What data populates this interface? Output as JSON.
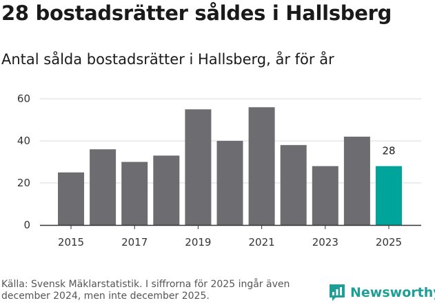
{
  "title": "28 bostadsrätter såldes i Hallsberg",
  "subtitle": "Antal sålda bostadsrätter i Hallsberg, år för år",
  "source": "Källa: Svensk Mäklarstatistik. I siffrorna för 2025 ingår även december 2024, men inte december 2025.",
  "brand": {
    "name": "Newsworthy",
    "icon": "newsworthy-logo-icon",
    "color": "#1e9e96"
  },
  "colors": {
    "bar": "#6d6c70",
    "highlight": "#00a49a",
    "grid": "#d9d9d9",
    "axis": "#333333"
  },
  "chart_data": {
    "type": "bar",
    "title": "Antal sålda bostadsrätter i Hallsberg, år för år",
    "xlabel": "",
    "ylabel": "",
    "categories": [
      "2015",
      "2016",
      "2017",
      "2018",
      "2019",
      "2020",
      "2021",
      "2022",
      "2023",
      "2024",
      "2025"
    ],
    "values": [
      25,
      36,
      30,
      33,
      55,
      40,
      56,
      38,
      28,
      42,
      28
    ],
    "x_tick_labels": [
      "2015",
      "2017",
      "2019",
      "2021",
      "2023",
      "2025"
    ],
    "y_ticks": [
      0,
      20,
      40,
      60
    ],
    "ylim": [
      0,
      63
    ],
    "grid": true,
    "highlight_index": 10,
    "data_labels": [
      {
        "category": "2025",
        "text": "28"
      }
    ]
  }
}
